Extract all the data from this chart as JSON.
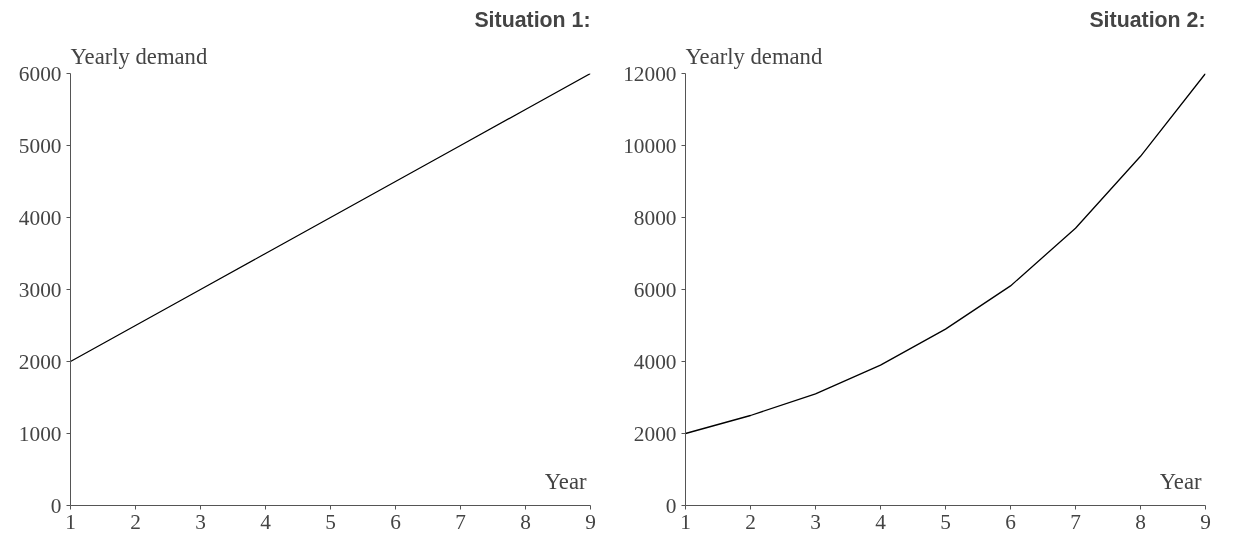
{
  "chart_data": [
    {
      "type": "line",
      "title": "Situation 1:",
      "ylabel": "Yearly demand",
      "xlabel": "Year",
      "x": [
        1,
        2,
        3,
        4,
        5,
        6,
        7,
        8,
        9
      ],
      "series": [
        {
          "color": "#000000",
          "values": [
            2000,
            2500,
            3000,
            3500,
            4000,
            4500,
            5000,
            5500,
            6000
          ]
        }
      ],
      "xlim": [
        1,
        9
      ],
      "xticks": [
        1,
        2,
        3,
        4,
        5,
        6,
        7,
        8,
        9
      ],
      "ylim": [
        0,
        6000
      ],
      "yticks": [
        0,
        1000,
        2000,
        3000,
        4000,
        5000,
        6000
      ],
      "grid": false,
      "marker": "none",
      "line_style": "solid"
    },
    {
      "type": "line",
      "title": "Situation 2:",
      "ylabel": "Yearly demand",
      "xlabel": "Year",
      "x": [
        1,
        2,
        3,
        4,
        5,
        6,
        7,
        8,
        9
      ],
      "series": [
        {
          "color": "#000000",
          "values": [
            2000,
            2500,
            3100,
            3900,
            4900,
            6100,
            7700,
            9700,
            12000
          ]
        }
      ],
      "xlim": [
        1,
        9
      ],
      "xticks": [
        1,
        2,
        3,
        4,
        5,
        6,
        7,
        8,
        9
      ],
      "ylim": [
        0,
        12000
      ],
      "yticks": [
        0,
        2000,
        4000,
        6000,
        8000,
        10000,
        12000
      ],
      "grid": false,
      "marker": "none",
      "line_style": "solid"
    }
  ]
}
